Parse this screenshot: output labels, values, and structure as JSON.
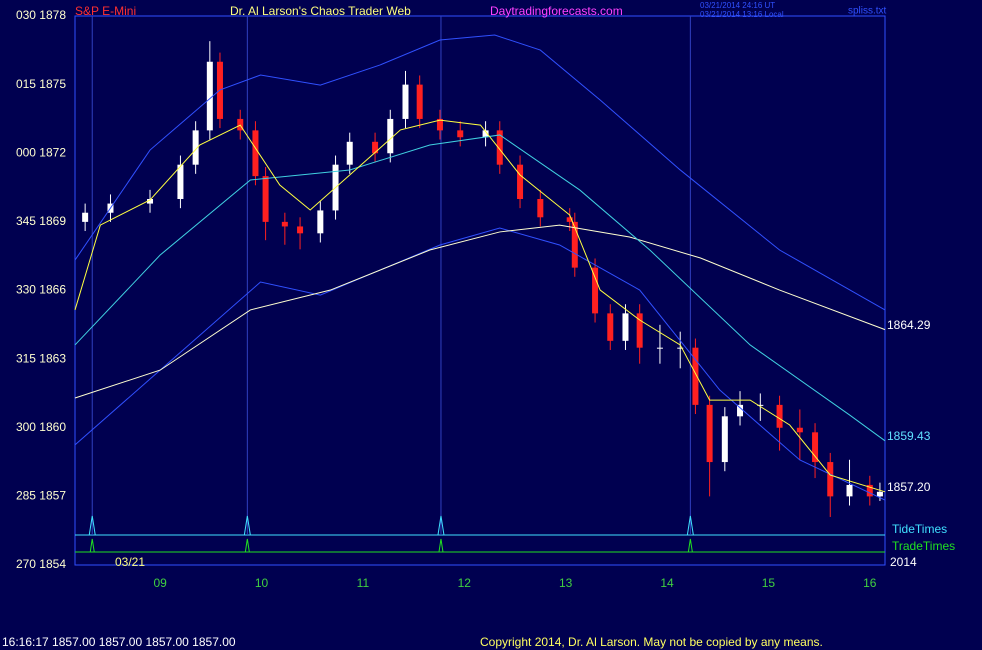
{
  "chart_data": {
    "type": "candlestick",
    "title": "Dr. Al Larson's Chaos Trader Web",
    "symbol": "S&P E-Mini",
    "website": "Daytradingforecasts.com",
    "timestamp_ut": "03/21/2014 24:16 UT",
    "timestamp_local": "03/21/2014 13:16 Local",
    "file_name": "spliss.txt",
    "date_label": "03/21",
    "year_label": "2014",
    "status": "16:16:17  1857.00 1857.00 1857.00 1857.00",
    "copyright": "Copyright 2014, Dr. Al Larson. May not be copied by any means.",
    "ylim": [
      1854,
      1878
    ],
    "yticks": [
      {
        "value": 1878,
        "label": "030 1878"
      },
      {
        "value": 1875,
        "label": "015 1875"
      },
      {
        "value": 1872,
        "label": "000 1872"
      },
      {
        "value": 1869,
        "label": "345 1869"
      },
      {
        "value": 1866,
        "label": "330 1866"
      },
      {
        "value": 1863,
        "label": "315 1863"
      },
      {
        "value": 1860,
        "label": "300 1860"
      },
      {
        "value": 1857,
        "label": "285 1857"
      },
      {
        "value": 1854,
        "label": "270 1854"
      }
    ],
    "xlim": [
      8.16,
      16.15
    ],
    "xticks": [
      {
        "value": 9,
        "label": "09"
      },
      10,
      11,
      12,
      13,
      14,
      15,
      16
    ],
    "up_color": "#ffffff",
    "down_color": "#ff2020",
    "candles": {
      "x": [
        8.26,
        8.51,
        8.9,
        9.2,
        9.35,
        9.49,
        9.59,
        9.79,
        9.94,
        10.04,
        10.23,
        10.38,
        10.58,
        10.73,
        10.87,
        11.12,
        11.27,
        11.42,
        11.56,
        11.76,
        11.96,
        12.21,
        12.35,
        12.55,
        12.75,
        13.04,
        13.09,
        13.29,
        13.44,
        13.59,
        13.73,
        13.93,
        14.13,
        14.28,
        14.42,
        14.57,
        14.72,
        14.92,
        15.11,
        15.31,
        15.46,
        15.61,
        15.8,
        16.0,
        16.1
      ],
      "open": [
        1869.0,
        1869.4,
        1869.8,
        1870.0,
        1871.5,
        1873.0,
        1876.0,
        1873.5,
        1873.0,
        1871.0,
        1869.0,
        1868.8,
        1868.5,
        1869.5,
        1871.5,
        1872.5,
        1872.0,
        1873.5,
        1875.0,
        1873.5,
        1873.0,
        1872.7,
        1873.0,
        1871.5,
        1870.0,
        1869.2,
        1869.0,
        1867.0,
        1865.0,
        1863.8,
        1865.0,
        1863.5,
        1863.5,
        1863.5,
        1861.0,
        1858.5,
        1860.5,
        1861.0,
        1861.0,
        1860.0,
        1859.8,
        1858.5,
        1857.0,
        1857.5,
        1857.0
      ],
      "high": [
        1869.8,
        1870.2,
        1870.4,
        1871.9,
        1873.4,
        1876.9,
        1876.4,
        1873.9,
        1873.4,
        1871.4,
        1869.4,
        1869.2,
        1869.9,
        1871.9,
        1872.9,
        1872.9,
        1873.9,
        1875.6,
        1875.4,
        1873.9,
        1873.4,
        1873.4,
        1873.4,
        1871.9,
        1870.4,
        1869.6,
        1869.4,
        1867.4,
        1865.4,
        1865.4,
        1865.4,
        1864.5,
        1864.2,
        1863.9,
        1861.4,
        1860.9,
        1861.6,
        1861.5,
        1861.4,
        1860.8,
        1860.2,
        1858.9,
        1858.6,
        1857.9,
        1857.6
      ],
      "low": [
        1868.6,
        1869.0,
        1869.4,
        1869.6,
        1871.1,
        1872.6,
        1873.1,
        1872.6,
        1870.6,
        1868.2,
        1868.0,
        1867.8,
        1868.1,
        1869.1,
        1871.1,
        1871.6,
        1871.6,
        1873.1,
        1873.1,
        1872.6,
        1872.3,
        1872.3,
        1871.1,
        1869.6,
        1868.8,
        1868.6,
        1866.6,
        1864.6,
        1863.4,
        1863.4,
        1862.8,
        1862.8,
        1862.6,
        1860.6,
        1857.0,
        1858.1,
        1860.1,
        1860.3,
        1859.0,
        1858.6,
        1857.8,
        1856.1,
        1856.6,
        1856.6,
        1856.8
      ],
      "close": [
        1869.4,
        1869.8,
        1870.0,
        1871.5,
        1873.0,
        1876.0,
        1873.5,
        1873.0,
        1871.0,
        1869.0,
        1868.8,
        1868.5,
        1869.5,
        1871.5,
        1872.5,
        1872.0,
        1873.5,
        1875.0,
        1873.5,
        1873.0,
        1872.7,
        1873.0,
        1871.5,
        1870.0,
        1869.2,
        1869.0,
        1867.0,
        1865.0,
        1863.8,
        1865.0,
        1863.5,
        1863.5,
        1863.5,
        1861.0,
        1858.5,
        1860.5,
        1861.0,
        1861.0,
        1860.0,
        1859.8,
        1858.5,
        1857.0,
        1857.5,
        1857.0,
        1857.2
      ]
    },
    "lines": [
      {
        "color": "#3050ff",
        "x": [
          8.16,
          8.9,
          9.59,
          9.99,
          10.58,
          11.17,
          11.76,
          12.3,
          12.75,
          13.34,
          14.13,
          15.11,
          16.15
        ],
        "values": [
          1867.33,
          1872.14,
          1874.77,
          1875.42,
          1874.98,
          1875.86,
          1876.95,
          1877.17,
          1876.51,
          1874.33,
          1871.27,
          1867.77,
          1865.15
        ]
      },
      {
        "color": "#3050ff",
        "x": [
          8.16,
          9.0,
          9.99,
          10.58,
          11.76,
          12.35,
          12.94,
          13.73,
          14.52,
          15.31,
          16.15
        ],
        "values": [
          1859.25,
          1862.52,
          1866.37,
          1865.8,
          1867.99,
          1868.73,
          1867.99,
          1866.02,
          1861.65,
          1858.59,
          1856.84
        ]
      },
      {
        "color": "#ffffd0",
        "x": [
          8.16,
          9.0,
          9.89,
          10.68,
          11.66,
          12.35,
          12.94,
          13.63,
          14.33,
          15.11,
          16.15
        ],
        "values": [
          1861.3,
          1862.52,
          1865.15,
          1866.02,
          1867.77,
          1868.56,
          1868.86,
          1868.34,
          1867.42,
          1866.02,
          1864.29
        ],
        "end_label": "1864.29",
        "label_color": "#ffffff"
      },
      {
        "color": "#40d0e0",
        "x": [
          8.16,
          9.0,
          9.89,
          10.87,
          11.66,
          12.35,
          13.14,
          13.83,
          14.82,
          15.8,
          16.15
        ],
        "values": [
          1863.62,
          1867.55,
          1870.83,
          1871.27,
          1872.36,
          1872.8,
          1870.39,
          1867.77,
          1863.62,
          1860.56,
          1859.43
        ],
        "end_label": "1859.43",
        "label_color": "#60e0ff"
      },
      {
        "color": "#ffff40",
        "x": [
          8.16,
          8.41,
          8.9,
          9.39,
          9.79,
          10.18,
          10.48,
          10.87,
          11.37,
          11.76,
          12.16,
          12.55,
          13.04,
          13.34,
          13.73,
          14.13,
          14.42,
          14.82,
          15.21,
          15.61,
          16.15
        ],
        "values": [
          1865.15,
          1868.86,
          1869.96,
          1872.36,
          1873.23,
          1870.61,
          1869.52,
          1871.05,
          1873.02,
          1873.45,
          1873.23,
          1871.05,
          1869.3,
          1866.02,
          1864.71,
          1863.62,
          1861.21,
          1861.21,
          1860.12,
          1857.93,
          1857.2
        ],
        "end_label": "1857.20",
        "label_color": "#ffffff"
      }
    ],
    "event_times": [
      8.33,
      9.86,
      11.77,
      14.23
    ],
    "tide_label": "TideTimes",
    "trade_label": "TradeTimes",
    "vline_color": "#3040c0",
    "tide_color": "#40e0ff",
    "trade_color": "#20e020"
  }
}
